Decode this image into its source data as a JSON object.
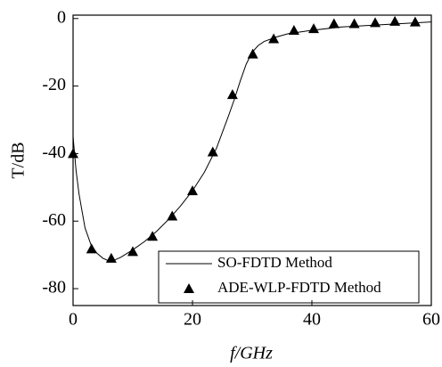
{
  "chart_data": {
    "type": "line+scatter",
    "xlabel": "f/GHz",
    "ylabel": "T/dB",
    "xlim": [
      0,
      60
    ],
    "xticks": [
      0,
      20,
      40,
      60
    ],
    "ylim": [
      -85,
      1
    ],
    "yticks": [
      0,
      -20,
      -40,
      -60,
      -80
    ],
    "legend": "lower right",
    "series": [
      {
        "name": "SO-FDTD Method",
        "kind": "line",
        "color": "#000000",
        "x": [
          0,
          0.5,
          1,
          2,
          3,
          4,
          5,
          6,
          7,
          8,
          10,
          12,
          14,
          16,
          18,
          20,
          22,
          24,
          26,
          27,
          28,
          29,
          30,
          31,
          32,
          34,
          36,
          40,
          45,
          50,
          55,
          60
        ],
        "values": [
          -35,
          -45,
          -52,
          -62,
          -67,
          -69.5,
          -71,
          -71.8,
          -71.5,
          -70.7,
          -68.5,
          -66,
          -63,
          -59.5,
          -55.5,
          -51,
          -45.5,
          -38.5,
          -29,
          -24,
          -18.5,
          -13.5,
          -10,
          -8,
          -6.8,
          -5.5,
          -4.5,
          -3.5,
          -2.5,
          -2,
          -1.5,
          -1
        ]
      },
      {
        "name": "ADE-WLP-FDTD Method",
        "kind": "scatter",
        "color": "#000000",
        "x": [
          0,
          3.1,
          6.4,
          10,
          13.3,
          16.6,
          20,
          23.4,
          26.7,
          30.1,
          33.6,
          37,
          40.3,
          43.7,
          47.1,
          50.6,
          53.9,
          57.3
        ],
        "values": [
          -40,
          -68.2,
          -71,
          -69,
          -64.5,
          -58.5,
          -51,
          -39.5,
          -22.5,
          -10.5,
          -6,
          -3.5,
          -3,
          -1.5,
          -1.5,
          -1.2,
          -0.8,
          -1
        ]
      }
    ]
  }
}
